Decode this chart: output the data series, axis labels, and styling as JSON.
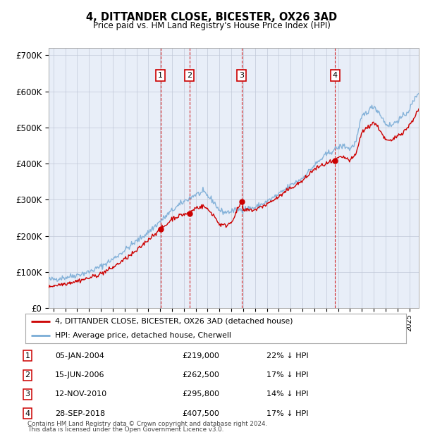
{
  "title": "4, DITTANDER CLOSE, BICESTER, OX26 3AD",
  "subtitle": "Price paid vs. HM Land Registry's House Price Index (HPI)",
  "legend_line1": "4, DITTANDER CLOSE, BICESTER, OX26 3AD (detached house)",
  "legend_line2": "HPI: Average price, detached house, Cherwell",
  "footer1": "Contains HM Land Registry data © Crown copyright and database right 2024.",
  "footer2": "This data is licensed under the Open Government Licence v3.0.",
  "sales": [
    {
      "label": "1",
      "date": "05-JAN-2004",
      "price": 219000,
      "hpi_pct": "22% ↓ HPI",
      "x_year": 2004.02
    },
    {
      "label": "2",
      "date": "15-JUN-2006",
      "price": 262500,
      "hpi_pct": "17% ↓ HPI",
      "x_year": 2006.46
    },
    {
      "label": "3",
      "date": "12-NOV-2010",
      "price": 295800,
      "hpi_pct": "14% ↓ HPI",
      "x_year": 2010.87
    },
    {
      "label": "4",
      "date": "28-SEP-2018",
      "price": 407500,
      "hpi_pct": "17% ↓ HPI",
      "x_year": 2018.74
    }
  ],
  "sale_color": "#cc0000",
  "hpi_color": "#7aacd6",
  "background_color": "#e8eef8",
  "ylim": [
    0,
    720000
  ],
  "xlim_start": 1994.6,
  "xlim_end": 2025.8,
  "yticks": [
    0,
    100000,
    200000,
    300000,
    400000,
    500000,
    600000,
    700000
  ],
  "ytick_labels": [
    "£0",
    "£100K",
    "£200K",
    "£300K",
    "£400K",
    "£500K",
    "£600K",
    "£700K"
  ]
}
